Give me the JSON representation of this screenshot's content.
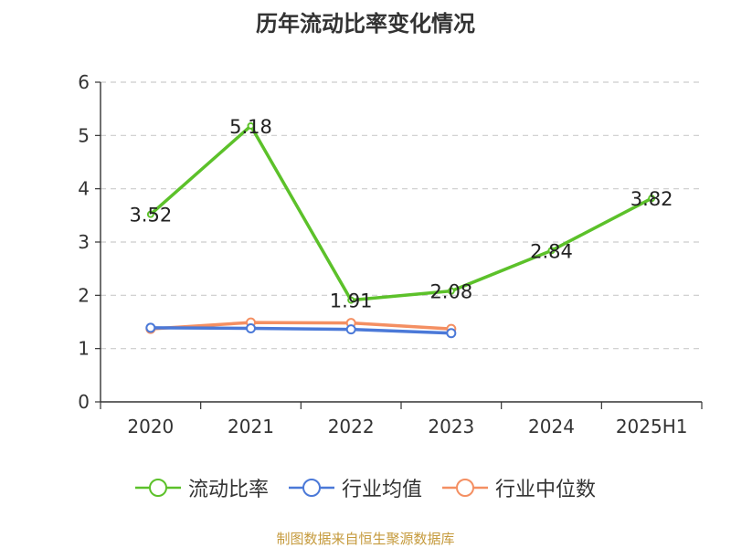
{
  "chart_data": {
    "type": "line",
    "title": "历年流动比率变化情况",
    "categories": [
      "2020",
      "2021",
      "2022",
      "2023",
      "2024",
      "2025H1"
    ],
    "ylim": [
      0,
      6
    ],
    "yticks": [
      0,
      1,
      2,
      3,
      4,
      5,
      6
    ],
    "grid": true,
    "legend_position": "bottom",
    "series": [
      {
        "name": "流动比率",
        "color": "#5cc12a",
        "values": [
          3.52,
          5.18,
          1.91,
          2.08,
          2.84,
          3.82
        ],
        "labels": [
          "3.52",
          "5.18",
          "1.91",
          "2.08",
          "2.84",
          "3.82"
        ]
      },
      {
        "name": "行业均值",
        "color": "#4b79d8",
        "values": [
          1.39,
          1.38,
          1.36,
          1.29,
          null,
          null
        ]
      },
      {
        "name": "行业中位数",
        "color": "#f48f62",
        "values": [
          1.37,
          1.49,
          1.48,
          1.37,
          null,
          null
        ]
      }
    ],
    "source": "制图数据来自恒生聚源数据库"
  }
}
